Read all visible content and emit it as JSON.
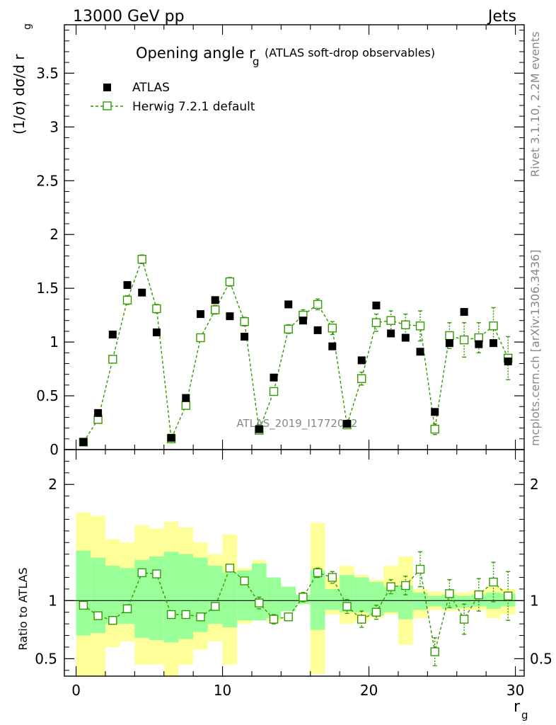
{
  "header": {
    "energy_label": "13000 GeV pp",
    "process_label": "Jets"
  },
  "side": {
    "rivet": "Rivet 3.1.10,  2.2M events",
    "mcplots": "mcplots.cern.ch [arXiv:1306.3436]"
  },
  "watermark": "ATLAS_2019_I1772062",
  "colors": {
    "mc": "#339900",
    "band_outer": "#ffff99",
    "band_inner": "#99ff99",
    "data": "#000000"
  },
  "chart_data": [
    {
      "type": "scatter",
      "title": "Opening angle r",
      "title_sub": "g",
      "title_suffix": "(ATLAS soft-drop observables)",
      "ylabel": "(1/σ) dσ/d r",
      "ylabel_sub": "g",
      "xlabel": "r",
      "xlabel_sub": "g",
      "xlim": [
        -0.8,
        30.6
      ],
      "ylim": [
        0,
        3.95
      ],
      "x_ticks": [
        "0",
        "10",
        "20",
        "30"
      ],
      "y_ticks": [
        "0",
        "0.5",
        "1",
        "1.5",
        "2",
        "2.5",
        "3",
        "3.5"
      ],
      "legend": [
        "ATLAS",
        "Herwig 7.2.1 default"
      ],
      "x": [
        0.5,
        1.5,
        2.5,
        3.5,
        4.5,
        5.5,
        6.5,
        7.5,
        8.5,
        9.5,
        10.5,
        11.5,
        12.5,
        13.5,
        14.5,
        15.5,
        16.5,
        17.5,
        18.5,
        19.5,
        20.5,
        21.5,
        22.5,
        23.5,
        24.5,
        25.5,
        26.5,
        27.5,
        28.5,
        29.5
      ],
      "series": [
        {
          "name": "ATLAS",
          "values": [
            0.07,
            0.34,
            1.07,
            1.53,
            1.46,
            1.09,
            0.11,
            0.48,
            1.26,
            1.39,
            1.24,
            1.05,
            0.19,
            0.67,
            1.35,
            1.2,
            1.11,
            0.96,
            0.24,
            0.83,
            1.34,
            1.08,
            1.04,
            0.91,
            0.35,
            0.99,
            1.28,
            0.98,
            0.99,
            0.82
          ]
        },
        {
          "name": "Herwig 7.2.1 default",
          "values": [
            0.07,
            0.28,
            0.84,
            1.39,
            1.77,
            1.31,
            0.1,
            0.41,
            1.04,
            1.3,
            1.56,
            1.19,
            0.18,
            0.54,
            1.12,
            1.25,
            1.35,
            1.13,
            0.23,
            0.66,
            1.18,
            1.2,
            1.16,
            1.15,
            0.19,
            1.06,
            1.02,
            1.04,
            1.15,
            0.85
          ],
          "errors": [
            0.01,
            0.02,
            0.03,
            0.04,
            0.04,
            0.04,
            0.01,
            0.02,
            0.03,
            0.04,
            0.04,
            0.04,
            0.01,
            0.03,
            0.04,
            0.05,
            0.05,
            0.06,
            0.02,
            0.06,
            0.08,
            0.09,
            0.1,
            0.14,
            0.05,
            0.12,
            0.16,
            0.14,
            0.17,
            0.2
          ]
        }
      ]
    },
    {
      "type": "scatter",
      "ylabel": "Ratio to ATLAS",
      "xlim": [
        -0.8,
        30.6
      ],
      "ylim": [
        0.35,
        2.3
      ],
      "y_ticks": [
        "0.5",
        "1",
        "2"
      ],
      "x": [
        0.5,
        1.5,
        2.5,
        3.5,
        4.5,
        5.5,
        6.5,
        7.5,
        8.5,
        9.5,
        10.5,
        11.5,
        12.5,
        13.5,
        14.5,
        15.5,
        16.5,
        17.5,
        18.5,
        19.5,
        20.5,
        21.5,
        22.5,
        23.5,
        24.5,
        25.5,
        26.5,
        27.5,
        28.5,
        29.5
      ],
      "band_inner": [
        [
          0.7,
          1.43
        ],
        [
          0.72,
          1.37
        ],
        [
          0.8,
          1.3
        ],
        [
          0.8,
          1.28
        ],
        [
          0.68,
          1.35
        ],
        [
          0.66,
          1.38
        ],
        [
          0.64,
          1.42
        ],
        [
          0.67,
          1.4
        ],
        [
          0.73,
          1.37
        ],
        [
          0.8,
          1.3
        ],
        [
          0.77,
          1.24
        ],
        [
          0.83,
          1.26
        ],
        [
          0.83,
          1.32
        ],
        [
          0.85,
          1.2
        ],
        [
          0.91,
          1.12
        ],
        [
          0.97,
          1.05
        ],
        [
          0.75,
          1.26
        ],
        [
          0.92,
          1.1
        ],
        [
          0.9,
          1.22
        ],
        [
          0.9,
          1.2
        ],
        [
          0.87,
          1.16
        ],
        [
          0.9,
          1.12
        ],
        [
          0.84,
          1.13
        ],
        [
          0.92,
          1.07
        ],
        [
          0.95,
          1.04
        ],
        [
          0.93,
          1.05
        ],
        [
          0.94,
          1.04
        ],
        [
          0.95,
          1.05
        ],
        [
          0.93,
          1.07
        ],
        [
          0.95,
          1.06
        ]
      ],
      "band_outer": [
        [
          0.35,
          1.76
        ],
        [
          0.35,
          1.73
        ],
        [
          0.6,
          1.53
        ],
        [
          0.65,
          1.5
        ],
        [
          0.45,
          1.65
        ],
        [
          0.45,
          1.62
        ],
        [
          0.35,
          1.68
        ],
        [
          0.45,
          1.63
        ],
        [
          0.58,
          1.5
        ],
        [
          0.65,
          1.4
        ],
        [
          0.45,
          1.57
        ],
        [
          0.8,
          1.28
        ],
        [
          0.83,
          1.35
        ],
        [
          0.82,
          1.2
        ],
        [
          0.92,
          1.12
        ],
        [
          0.97,
          1.05
        ],
        [
          0.37,
          1.67
        ],
        [
          0.88,
          1.2
        ],
        [
          0.8,
          1.3
        ],
        [
          0.82,
          1.22
        ],
        [
          0.85,
          1.18
        ],
        [
          0.88,
          1.3
        ],
        [
          0.62,
          1.38
        ],
        [
          0.85,
          1.1
        ],
        [
          0.92,
          1.08
        ],
        [
          0.91,
          1.07
        ],
        [
          0.92,
          1.07
        ],
        [
          0.92,
          1.09
        ],
        [
          0.85,
          1.12
        ],
        [
          0.88,
          1.1
        ]
      ],
      "series": [
        {
          "name": "Herwig 7.2.1 default",
          "values": [
            0.96,
            0.87,
            0.83,
            0.93,
            1.24,
            1.23,
            0.88,
            0.88,
            0.86,
            0.95,
            1.28,
            1.17,
            0.98,
            0.84,
            0.86,
            1.03,
            1.24,
            1.2,
            0.95,
            0.84,
            0.9,
            1.12,
            1.13,
            1.27,
            0.56,
            1.06,
            0.84,
            1.05,
            1.16,
            1.04
          ],
          "errors": [
            0.01,
            0.01,
            0.01,
            0.02,
            0.02,
            0.02,
            0.03,
            0.02,
            0.01,
            0.02,
            0.02,
            0.03,
            0.05,
            0.04,
            0.03,
            0.04,
            0.04,
            0.05,
            0.06,
            0.07,
            0.06,
            0.06,
            0.08,
            0.15,
            0.12,
            0.12,
            0.13,
            0.14,
            0.17,
            0.21
          ]
        }
      ]
    }
  ]
}
